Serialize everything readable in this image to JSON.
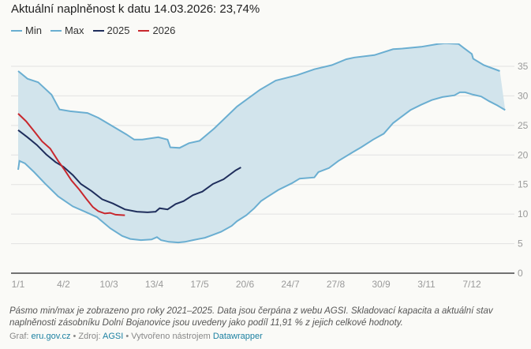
{
  "title": "Aktuální naplněnost k datu 14.03.2026: 23,74%",
  "legend": [
    {
      "label": "Min",
      "color": "#6aaed1"
    },
    {
      "label": "Max",
      "color": "#6aaed1"
    },
    {
      "label": "2025",
      "color": "#1f2e5c"
    },
    {
      "label": "2026",
      "color": "#c8272d"
    }
  ],
  "colors": {
    "band_fill": "#d2e4ec",
    "minmax_line": "#6aaed1",
    "line_2025": "#1f2e5c",
    "line_2026": "#c8272d",
    "grid": "#e2e2e2",
    "axis": "#222222"
  },
  "chart_data": {
    "type": "line",
    "title": "Aktuální naplněnost k datu 14.03.2026: 23,74%",
    "xlabel": "",
    "ylabel": "",
    "x_unit": "day of year (0 = 1/1)",
    "xlim": [
      0,
      365
    ],
    "ylim": [
      0,
      37
    ],
    "grid": true,
    "legend_position": "top-left",
    "y_axis_position": "right",
    "x_ticks": [
      {
        "day": 0,
        "label": "1/1"
      },
      {
        "day": 34,
        "label": "4/2"
      },
      {
        "day": 68,
        "label": "10/3"
      },
      {
        "day": 102,
        "label": "13/4"
      },
      {
        "day": 136,
        "label": "17/5"
      },
      {
        "day": 170,
        "label": "20/6"
      },
      {
        "day": 204,
        "label": "24/7"
      },
      {
        "day": 238,
        "label": "27/8"
      },
      {
        "day": 272,
        "label": "30/9"
      },
      {
        "day": 306,
        "label": "3/11"
      },
      {
        "day": 340,
        "label": "7/12"
      }
    ],
    "y_ticks": [
      0,
      5,
      10,
      15,
      20,
      25,
      30,
      35
    ],
    "series": [
      {
        "name": "Max",
        "points": [
          [
            0,
            34.2
          ],
          [
            7,
            32.9
          ],
          [
            15,
            32.3
          ],
          [
            25,
            30.2
          ],
          [
            31,
            27.7
          ],
          [
            39,
            27.4
          ],
          [
            52,
            27.1
          ],
          [
            60,
            26.3
          ],
          [
            81,
            23.5
          ],
          [
            87,
            22.6
          ],
          [
            93,
            22.6
          ],
          [
            105,
            23.0
          ],
          [
            112,
            22.6
          ],
          [
            114,
            21.3
          ],
          [
            121,
            21.2
          ],
          [
            128,
            22.0
          ],
          [
            136,
            22.4
          ],
          [
            147,
            24.5
          ],
          [
            164,
            28.2
          ],
          [
            181,
            31.0
          ],
          [
            193,
            32.6
          ],
          [
            209,
            33.5
          ],
          [
            222,
            34.5
          ],
          [
            235,
            35.2
          ],
          [
            246,
            36.2
          ],
          [
            252,
            36.5
          ],
          [
            267,
            36.9
          ],
          [
            281,
            37.9
          ],
          [
            288,
            38.0
          ],
          [
            302,
            38.3
          ],
          [
            315,
            38.8
          ],
          [
            320,
            38.9
          ],
          [
            330,
            38.8
          ],
          [
            334,
            38.1
          ],
          [
            340,
            37.1
          ],
          [
            341,
            36.3
          ],
          [
            349,
            35.2
          ],
          [
            361,
            34.2
          ],
          [
            366,
            34.1
          ],
          [
            365,
            34.2
          ]
        ]
      },
      {
        "name": "Min",
        "points": [
          [
            0,
            17.5
          ],
          [
            1,
            19.0
          ],
          [
            5,
            18.6
          ],
          [
            12,
            17.1
          ],
          [
            20,
            15.2
          ],
          [
            30,
            13.0
          ],
          [
            41,
            11.3
          ],
          [
            50,
            10.4
          ],
          [
            59,
            9.5
          ],
          [
            69,
            7.6
          ],
          [
            78,
            6.3
          ],
          [
            84,
            5.8
          ],
          [
            92,
            5.6
          ],
          [
            100,
            5.7
          ],
          [
            104,
            6.1
          ],
          [
            107,
            5.6
          ],
          [
            113,
            5.3
          ],
          [
            120,
            5.2
          ],
          [
            125,
            5.3
          ],
          [
            131,
            5.6
          ],
          [
            140,
            6.0
          ],
          [
            145,
            6.4
          ],
          [
            152,
            7.0
          ],
          [
            160,
            8.0
          ],
          [
            164,
            8.8
          ],
          [
            171,
            9.8
          ],
          [
            177,
            11.0
          ],
          [
            182,
            12.2
          ],
          [
            186,
            12.8
          ],
          [
            195,
            14.1
          ],
          [
            205,
            15.2
          ],
          [
            211,
            16.0
          ],
          [
            222,
            16.2
          ],
          [
            225,
            17.1
          ],
          [
            233,
            17.8
          ],
          [
            240,
            19.0
          ],
          [
            251,
            20.5
          ],
          [
            257,
            21.3
          ],
          [
            266,
            22.6
          ],
          [
            274,
            23.6
          ],
          [
            281,
            25.4
          ],
          [
            288,
            26.6
          ],
          [
            294,
            27.6
          ],
          [
            302,
            28.5
          ],
          [
            310,
            29.3
          ],
          [
            318,
            29.8
          ],
          [
            327,
            30.1
          ],
          [
            331,
            30.6
          ],
          [
            335,
            30.6
          ],
          [
            341,
            30.2
          ],
          [
            347,
            29.9
          ],
          [
            353,
            29.1
          ],
          [
            359,
            28.4
          ],
          [
            365,
            27.6
          ]
        ]
      },
      {
        "name": "2025",
        "points": [
          [
            0,
            24.2
          ],
          [
            7,
            23.0
          ],
          [
            14,
            21.7
          ],
          [
            21,
            20.1
          ],
          [
            28,
            18.8
          ],
          [
            34,
            18.0
          ],
          [
            41,
            16.6
          ],
          [
            47,
            15.1
          ],
          [
            55,
            13.9
          ],
          [
            63,
            12.5
          ],
          [
            71,
            11.8
          ],
          [
            80,
            10.8
          ],
          [
            89,
            10.4
          ],
          [
            97,
            10.3
          ],
          [
            103,
            10.4
          ],
          [
            106,
            11.0
          ],
          [
            112,
            10.8
          ],
          [
            118,
            11.7
          ],
          [
            124,
            12.2
          ],
          [
            131,
            13.2
          ],
          [
            138,
            13.8
          ],
          [
            146,
            15.1
          ],
          [
            154,
            15.9
          ],
          [
            163,
            17.4
          ],
          [
            167,
            17.9
          ],
          [
            150,
            16.0
          ]
        ]
      },
      {
        "name": "2026",
        "points": [
          [
            0,
            27.0
          ],
          [
            6,
            25.7
          ],
          [
            12,
            24.0
          ],
          [
            18,
            22.3
          ],
          [
            24,
            21.1
          ],
          [
            30,
            19.0
          ],
          [
            35,
            17.4
          ],
          [
            40,
            15.7
          ],
          [
            46,
            14.1
          ],
          [
            51,
            12.6
          ],
          [
            56,
            11.2
          ],
          [
            60,
            10.5
          ],
          [
            65,
            10.1
          ],
          [
            69,
            10.2
          ],
          [
            73,
            9.9
          ],
          [
            80,
            9.8
          ],
          [
            72,
            9.7
          ]
        ]
      }
    ]
  },
  "notes": "Pásmo min/max je zobrazeno pro roky 2021–2025. Data jsou čerpána z webu AGSI. Skladovací kapacita a aktuální stav naplněnosti zásobníku Dolní Bojanovice jsou uvedeny jako podíl 11,91 % z jejich celkové hodnoty.",
  "byline": {
    "graf_label": "Graf:",
    "graf_link": "eru.gov.cz",
    "sep1": " • ",
    "zdroj_label": "Zdroj:",
    "zdroj_link": "AGSI",
    "sep2": " • ",
    "tool_label": "Vytvořeno nástrojem",
    "tool_link": "Datawrapper"
  }
}
